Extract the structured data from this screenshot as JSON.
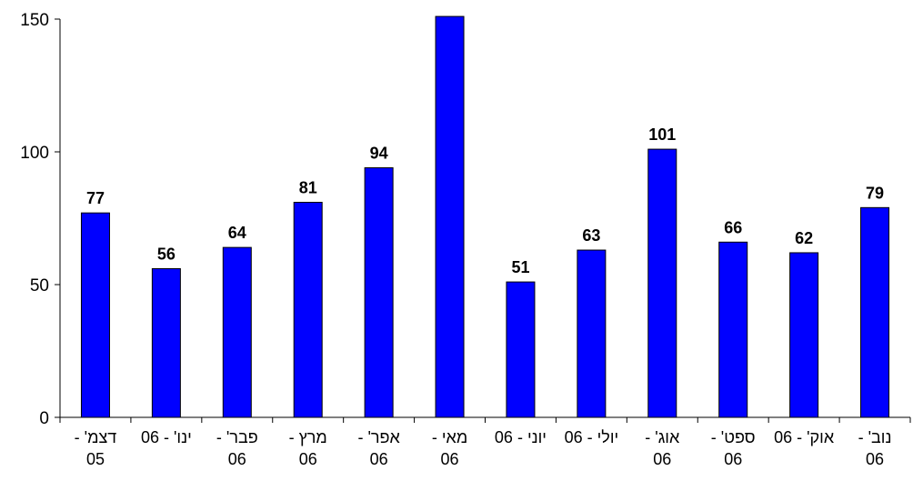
{
  "chart_data": {
    "type": "bar",
    "categories": [
      [
        "דצמ' -",
        "05"
      ],
      [
        "ינו' - 06",
        ""
      ],
      [
        "פבר' -",
        "06"
      ],
      [
        "מרץ -",
        "06"
      ],
      [
        "אפר' -",
        "06"
      ],
      [
        "מאי -",
        "06"
      ],
      [
        "יוני - 06",
        ""
      ],
      [
        "יולי - 06",
        ""
      ],
      [
        "אוג' -",
        "06"
      ],
      [
        "ספט' -",
        "06"
      ],
      [
        "אוק' - 06",
        ""
      ],
      [
        "נוב' -",
        "06"
      ]
    ],
    "values": [
      77,
      56,
      64,
      81,
      94,
      151,
      51,
      63,
      101,
      66,
      62,
      79
    ],
    "data_labels": [
      "77",
      "56",
      "64",
      "81",
      "94",
      "",
      "51",
      "63",
      "101",
      "66",
      "62",
      "79"
    ],
    "ylim": [
      0,
      150
    ],
    "yticks": [
      "0",
      "50",
      "100",
      "150"
    ],
    "bar_color": "#0000ff",
    "grid": false,
    "legend": "none",
    "title": "",
    "xlabel": "",
    "ylabel": ""
  }
}
